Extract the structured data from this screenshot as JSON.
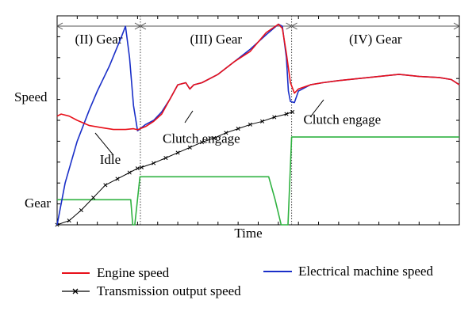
{
  "chart_data": {
    "type": "line",
    "xlabel": "Time",
    "ylabel": "",
    "y_tick_labels": [
      "Speed",
      "Gear"
    ],
    "xlim": [
      0,
      100
    ],
    "ylim": [
      0,
      100
    ],
    "gear_segments": [
      {
        "label": "(II) Gear",
        "start": 0,
        "end": 20.7
      },
      {
        "label": "(III) Gear",
        "start": 20.7,
        "end": 58.3
      },
      {
        "label": "(IV) Gear",
        "start": 58.3,
        "end": 100
      }
    ],
    "annotations": [
      {
        "text": "Idle",
        "x": 11,
        "y": 47
      },
      {
        "text": "Clutch engage",
        "x": 29,
        "y": 48
      },
      {
        "text": "Clutch engage",
        "x": 64,
        "y": 57
      }
    ],
    "series": [
      {
        "name": "Engine speed",
        "color": "#e8101a",
        "marker": "none",
        "x": [
          0,
          1,
          3,
          5,
          8,
          11,
          14,
          17,
          19,
          20,
          22,
          24,
          26,
          28,
          30,
          32,
          33,
          34,
          36,
          40,
          44,
          48,
          52,
          55,
          56,
          57,
          58,
          59,
          60,
          63,
          66,
          70,
          75,
          80,
          85,
          90,
          95,
          98,
          100
        ],
        "y": [
          52,
          53,
          52,
          50,
          47.5,
          46.5,
          45.6,
          45.6,
          46,
          45.5,
          47,
          49.5,
          53,
          60,
          67,
          68,
          65,
          67,
          68,
          72,
          78,
          83,
          92,
          96,
          94,
          82,
          68,
          63,
          65,
          67,
          68,
          69,
          70,
          71,
          72,
          71,
          70.5,
          69.5,
          67
        ]
      },
      {
        "name": "Electrical machine speed",
        "color": "#1a2fc8",
        "marker": "none",
        "x": [
          0,
          2,
          5,
          8,
          10,
          13,
          16,
          17,
          18,
          19,
          20,
          22,
          24,
          26,
          28,
          30,
          32,
          33,
          34,
          36,
          40,
          44,
          48,
          52,
          55,
          56,
          57,
          57.5,
          58,
          59,
          60,
          63,
          66,
          70,
          75,
          80,
          85,
          90,
          95,
          98,
          100
        ],
        "y": [
          0,
          20,
          40,
          55,
          64,
          76,
          90,
          95,
          80,
          57,
          45,
          48,
          50,
          54,
          60,
          67,
          68,
          65,
          67,
          68,
          72,
          78,
          84,
          91,
          96,
          95,
          80,
          64,
          59,
          58.5,
          64,
          67,
          68,
          69,
          70,
          71,
          72,
          71,
          70.5,
          69.5,
          67
        ]
      },
      {
        "name": "Transmission output speed",
        "color": "#000000",
        "marker": "x",
        "x": [
          0,
          3,
          6,
          9,
          12,
          15,
          18,
          20,
          21,
          24,
          27,
          30,
          33,
          36,
          39,
          42,
          45,
          48,
          51,
          54,
          57,
          58.5
        ],
        "y": [
          0,
          2,
          7,
          13,
          19,
          22,
          25,
          27,
          27.5,
          29.5,
          32,
          34.5,
          37,
          39.5,
          41.5,
          44,
          46,
          48,
          49.5,
          51.5,
          53,
          54
        ]
      },
      {
        "name": "Gear",
        "color": "#2fb240",
        "marker": "none",
        "x": [
          0,
          18.3,
          18.8,
          19.3,
          20.6,
          20.8,
          52.6,
          54.2,
          55.7,
          57.4,
          58.3,
          58.5,
          100
        ],
        "y": [
          12,
          12,
          0,
          0,
          23,
          23,
          23,
          12,
          0,
          0,
          42,
          42,
          42
        ]
      }
    ],
    "legend_position": "bottom"
  }
}
